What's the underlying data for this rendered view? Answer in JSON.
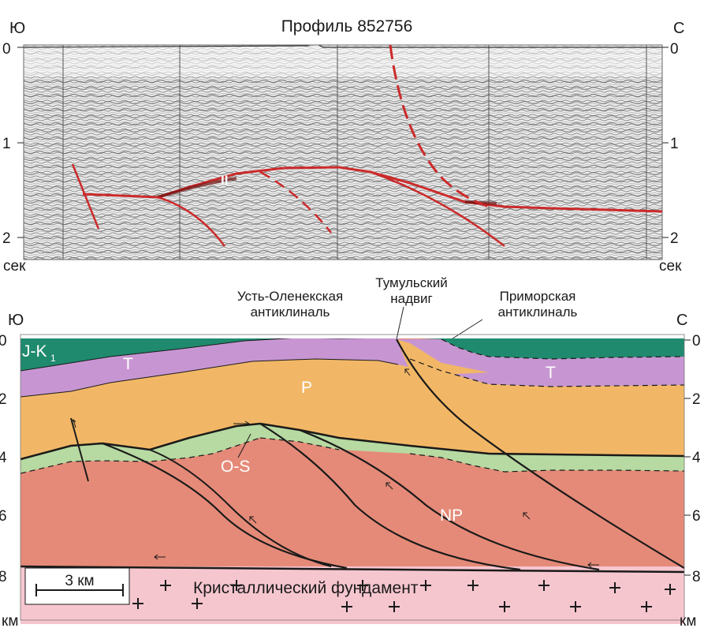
{
  "seismic": {
    "title": "Профиль 852756",
    "left_dir": "Ю",
    "right_dir": "С",
    "ticks": [
      "0",
      "1",
      "2"
    ],
    "unit": "сек",
    "horizon_label": "II"
  },
  "section": {
    "left_dir": "Ю",
    "right_dir": "С",
    "ticks": [
      "0",
      "2",
      "4",
      "6",
      "8"
    ],
    "unit": "км",
    "scale_bar": "3 км",
    "annotations": {
      "ust_olenek_line1": "Усть-Оленекская",
      "ust_olenek_line2": "антиклиналь",
      "tumul_line1": "Тумульский",
      "tumul_line2": "надвиг",
      "primor_line1": "Приморская",
      "primor_line2": "антиклиналь"
    },
    "layers": {
      "jk": "J-K",
      "jk_sub": "1",
      "t_left": "T",
      "t_right": "T",
      "p": "P",
      "os": "O-S",
      "np": "NP",
      "basement": "Кристаллический фундамент"
    },
    "colors": {
      "jk": "#1f8a6e",
      "t": "#c796d2",
      "p": "#f2b766",
      "os": "#b7d9a2",
      "np": "#e58a78",
      "basement": "#f6c6cf",
      "fault": "#1a1a1a",
      "seismic_fault": "#cc2a2a"
    }
  }
}
